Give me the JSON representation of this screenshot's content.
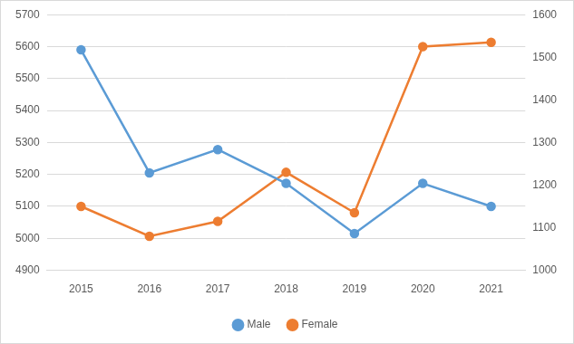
{
  "chart_data": {
    "type": "line",
    "categories": [
      "2015",
      "2016",
      "2017",
      "2018",
      "2019",
      "2020",
      "2021"
    ],
    "series": [
      {
        "name": "Male",
        "color": "#5b9bd5",
        "marker": "circle",
        "values": [
          5590,
          5205,
          5278,
          5172,
          5015,
          5172,
          5100
        ]
      },
      {
        "name": "Female",
        "color": "#ed7d31",
        "marker": "circle",
        "axis": "y2",
        "values": [
          1150,
          1080,
          1115,
          1230,
          1135,
          1525,
          1535
        ]
      }
    ],
    "ylim": [
      4900,
      5700
    ],
    "yticks": [
      4900,
      5000,
      5100,
      5200,
      5300,
      5400,
      5500,
      5600,
      5700
    ],
    "y2lim": [
      1000,
      1600
    ],
    "y2ticks": [
      1000,
      1100,
      1200,
      1300,
      1400,
      1500,
      1600
    ],
    "grid": true,
    "legend": "bottom"
  }
}
